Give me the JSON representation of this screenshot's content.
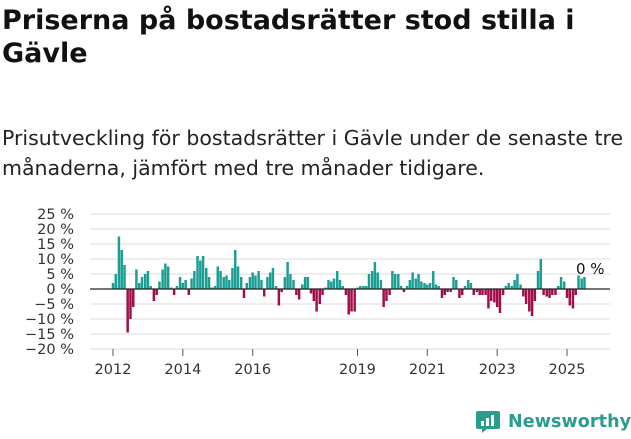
{
  "title": "Priserna på bostadsrätter stod stilla i Gävle",
  "subtitle": "Prisutveckling för bostadsrätter i Gävle under de senaste tre månaderna, jämfört med tre månader tidigare.",
  "brand": {
    "name": "Newsworthy",
    "icon": "newsworthy-logo-icon",
    "color": "#2a9d8f"
  },
  "colors": {
    "positive": "#1a9e94",
    "negative": "#a10d4b",
    "grid": "#dcdcdc",
    "zero": "#222222"
  },
  "chart_data": {
    "type": "bar",
    "title": "",
    "xlabel": "",
    "ylabel": "",
    "ylim": [
      -20,
      25
    ],
    "y_ticks": [
      {
        "value": 25,
        "label": "25 %"
      },
      {
        "value": 20,
        "label": "20 %"
      },
      {
        "value": 15,
        "label": "15 %"
      },
      {
        "value": 10,
        "label": "10 %"
      },
      {
        "value": 5,
        "label": "5 %"
      },
      {
        "value": 0,
        "label": "0 %"
      },
      {
        "value": -5,
        "label": "−5 %"
      },
      {
        "value": -10,
        "label": "−10 %"
      },
      {
        "value": -15,
        "label": "−15 %"
      },
      {
        "value": -20,
        "label": "−20 %"
      }
    ],
    "x_ticks": [
      {
        "value": 2012,
        "label": "2012"
      },
      {
        "value": 2014,
        "label": "2014"
      },
      {
        "value": 2016,
        "label": "2016"
      },
      {
        "value": 2019,
        "label": "2019"
      },
      {
        "value": 2021,
        "label": "2021"
      },
      {
        "value": 2023,
        "label": "2023"
      },
      {
        "value": 2025,
        "label": "2025"
      }
    ],
    "last_value_label": "0 %",
    "series": [
      {
        "interval": "monthly",
        "data": [
          [
            2012.0,
            2
          ],
          [
            2012.08,
            5
          ],
          [
            2012.17,
            17.5
          ],
          [
            2012.25,
            13
          ],
          [
            2012.33,
            8
          ],
          [
            2012.42,
            -14.5
          ],
          [
            2012.5,
            -10
          ],
          [
            2012.58,
            -6
          ],
          [
            2012.67,
            6.5
          ],
          [
            2012.75,
            2
          ],
          [
            2012.83,
            4
          ],
          [
            2012.92,
            5
          ],
          [
            2013.0,
            6
          ],
          [
            2013.08,
            1
          ],
          [
            2013.17,
            -4
          ],
          [
            2013.25,
            -2
          ],
          [
            2013.33,
            2.5
          ],
          [
            2013.42,
            6.5
          ],
          [
            2013.5,
            8.5
          ],
          [
            2013.58,
            7.5
          ],
          [
            2013.67,
            0.5
          ],
          [
            2013.75,
            -2
          ],
          [
            2013.83,
            1
          ],
          [
            2013.92,
            4
          ],
          [
            2014.0,
            2
          ],
          [
            2014.08,
            3
          ],
          [
            2014.17,
            -2
          ],
          [
            2014.25,
            3.5
          ],
          [
            2014.33,
            6
          ],
          [
            2014.42,
            11
          ],
          [
            2014.5,
            9.5
          ],
          [
            2014.58,
            11
          ],
          [
            2014.67,
            7
          ],
          [
            2014.75,
            4
          ],
          [
            2014.83,
            0.5
          ],
          [
            2014.92,
            1
          ],
          [
            2015.0,
            7.5
          ],
          [
            2015.08,
            6
          ],
          [
            2015.17,
            4
          ],
          [
            2015.25,
            4.5
          ],
          [
            2015.33,
            3
          ],
          [
            2015.42,
            7
          ],
          [
            2015.5,
            13
          ],
          [
            2015.58,
            7.5
          ],
          [
            2015.67,
            4
          ],
          [
            2015.75,
            -3
          ],
          [
            2015.83,
            2
          ],
          [
            2015.92,
            4
          ],
          [
            2016.0,
            5.5
          ],
          [
            2016.08,
            4.5
          ],
          [
            2016.17,
            6
          ],
          [
            2016.25,
            3
          ],
          [
            2016.33,
            -2.5
          ],
          [
            2016.42,
            4
          ],
          [
            2016.5,
            5.5
          ],
          [
            2016.58,
            7
          ],
          [
            2016.67,
            1
          ],
          [
            2016.75,
            -5.5
          ],
          [
            2016.83,
            -1
          ],
          [
            2016.92,
            4
          ],
          [
            2017.0,
            9
          ],
          [
            2017.08,
            5
          ],
          [
            2017.17,
            3
          ],
          [
            2017.25,
            -2
          ],
          [
            2017.33,
            -3.5
          ],
          [
            2017.42,
            1.5
          ],
          [
            2017.5,
            4
          ],
          [
            2017.58,
            4
          ],
          [
            2017.67,
            -1.5
          ],
          [
            2017.75,
            -4
          ],
          [
            2017.83,
            -7.5
          ],
          [
            2017.92,
            -5
          ],
          [
            2018.0,
            -2
          ],
          [
            2018.08,
            0.5
          ],
          [
            2018.17,
            3
          ],
          [
            2018.25,
            2.5
          ],
          [
            2018.33,
            3.5
          ],
          [
            2018.42,
            6
          ],
          [
            2018.5,
            3
          ],
          [
            2018.58,
            1
          ],
          [
            2018.67,
            -2
          ],
          [
            2018.75,
            -8.5
          ],
          [
            2018.83,
            -7.5
          ],
          [
            2018.92,
            -7.5
          ],
          [
            2019.0,
            0.5
          ],
          [
            2019.08,
            1
          ],
          [
            2019.17,
            1
          ],
          [
            2019.25,
            1
          ],
          [
            2019.33,
            5
          ],
          [
            2019.42,
            6
          ],
          [
            2019.5,
            9
          ],
          [
            2019.58,
            5.5
          ],
          [
            2019.67,
            3
          ],
          [
            2019.75,
            -6
          ],
          [
            2019.83,
            -4
          ],
          [
            2019.92,
            -2
          ],
          [
            2020.0,
            6
          ],
          [
            2020.08,
            5
          ],
          [
            2020.17,
            5
          ],
          [
            2020.25,
            1
          ],
          [
            2020.33,
            -1
          ],
          [
            2020.42,
            1
          ],
          [
            2020.5,
            3
          ],
          [
            2020.58,
            5.5
          ],
          [
            2020.67,
            3.5
          ],
          [
            2020.75,
            5
          ],
          [
            2020.83,
            2.5
          ],
          [
            2020.92,
            2
          ],
          [
            2021.0,
            1.5
          ],
          [
            2021.08,
            2
          ],
          [
            2021.17,
            6
          ],
          [
            2021.25,
            1.5
          ],
          [
            2021.33,
            1
          ],
          [
            2021.42,
            -3
          ],
          [
            2021.5,
            -2
          ],
          [
            2021.58,
            -1
          ],
          [
            2021.67,
            -1
          ],
          [
            2021.75,
            4
          ],
          [
            2021.83,
            3
          ],
          [
            2021.92,
            -3
          ],
          [
            2022.0,
            -2
          ],
          [
            2022.08,
            1
          ],
          [
            2022.17,
            3
          ],
          [
            2022.25,
            2
          ],
          [
            2022.33,
            -2
          ],
          [
            2022.42,
            -1
          ],
          [
            2022.5,
            -2
          ],
          [
            2022.58,
            -2
          ],
          [
            2022.67,
            -2
          ],
          [
            2022.75,
            -6.5
          ],
          [
            2022.83,
            -4
          ],
          [
            2022.92,
            -4.5
          ],
          [
            2023.0,
            -6
          ],
          [
            2023.08,
            -8
          ],
          [
            2023.17,
            -2
          ],
          [
            2023.25,
            1
          ],
          [
            2023.33,
            2
          ],
          [
            2023.42,
            1
          ],
          [
            2023.5,
            3
          ],
          [
            2023.58,
            5
          ],
          [
            2023.67,
            1.5
          ],
          [
            2023.75,
            -2.5
          ],
          [
            2023.83,
            -5
          ],
          [
            2023.92,
            -7.5
          ],
          [
            2024.0,
            -9
          ],
          [
            2024.08,
            -4
          ],
          [
            2024.17,
            6
          ],
          [
            2024.25,
            10
          ],
          [
            2024.33,
            -2
          ],
          [
            2024.42,
            -2.5
          ],
          [
            2024.5,
            -3
          ],
          [
            2024.58,
            -2
          ],
          [
            2024.67,
            -2
          ],
          [
            2024.75,
            1
          ],
          [
            2024.83,
            4
          ],
          [
            2024.92,
            2.5
          ],
          [
            2025.0,
            -3
          ],
          [
            2025.08,
            -5.5
          ],
          [
            2025.17,
            -6.5
          ],
          [
            2025.25,
            -2
          ],
          [
            2025.33,
            4.5
          ],
          [
            2025.42,
            3.5
          ],
          [
            2025.5,
            4
          ],
          [
            2025.58,
            0
          ]
        ]
      }
    ]
  }
}
